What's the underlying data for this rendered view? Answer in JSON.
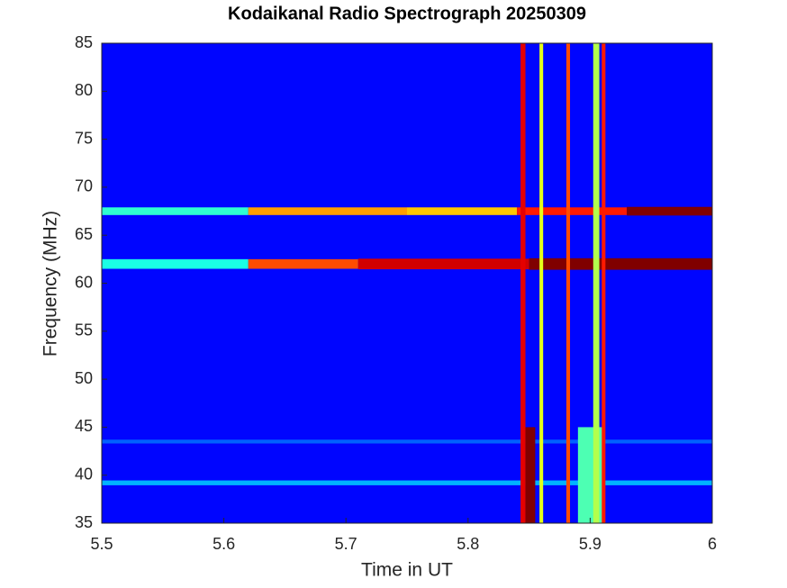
{
  "chart_data": {
    "type": "spectrogram",
    "title": "Kodaikanal Radio Spectrograph  20250309",
    "x_label": "Time in UT",
    "y_label": "Frequency (MHz)",
    "xlim": [
      5.5,
      6
    ],
    "ylim": [
      35,
      85
    ],
    "xticks": [
      5.5,
      5.6,
      5.7,
      5.8,
      5.9,
      6
    ],
    "yticks": [
      35,
      40,
      45,
      50,
      55,
      60,
      65,
      70,
      75,
      80,
      85
    ],
    "colormap": "jet",
    "background_intensity": 0.13,
    "horizontal_features": [
      {
        "freq": 67.5,
        "width": 0.8,
        "t0": 5.5,
        "t1": 5.62,
        "intensity": 0.42
      },
      {
        "freq": 67.5,
        "width": 0.8,
        "t0": 5.62,
        "t1": 5.75,
        "intensity": 0.72
      },
      {
        "freq": 67.5,
        "width": 0.8,
        "t0": 5.75,
        "t1": 5.84,
        "intensity": 0.68
      },
      {
        "freq": 67.5,
        "width": 0.8,
        "t0": 5.84,
        "t1": 5.93,
        "intensity": 0.85
      },
      {
        "freq": 67.5,
        "width": 0.9,
        "t0": 5.93,
        "t1": 6,
        "intensity": 1.0
      },
      {
        "freq": 62,
        "width": 1.0,
        "t0": 5.5,
        "t1": 5.62,
        "intensity": 0.4
      },
      {
        "freq": 62,
        "width": 1.0,
        "t0": 5.62,
        "t1": 5.71,
        "intensity": 0.8
      },
      {
        "freq": 62,
        "width": 1.1,
        "t0": 5.71,
        "t1": 5.85,
        "intensity": 0.92
      },
      {
        "freq": 62,
        "width": 1.2,
        "t0": 5.85,
        "t1": 6,
        "intensity": 1.0
      },
      {
        "freq": 39.2,
        "width": 0.5,
        "t0": 5.5,
        "t1": 6,
        "intensity": 0.3
      },
      {
        "freq": 43.5,
        "width": 0.4,
        "t0": 5.5,
        "t1": 6,
        "intensity": 0.22
      }
    ],
    "vertical_features": [
      {
        "time": 5.845,
        "width": 0.004,
        "f0": 35,
        "f1": 85,
        "intensity": 0.9
      },
      {
        "time": 5.851,
        "width": 0.008,
        "f0": 35,
        "f1": 45,
        "intensity": 1.0
      },
      {
        "time": 5.86,
        "width": 0.003,
        "f0": 35,
        "f1": 85,
        "intensity": 0.6
      },
      {
        "time": 5.882,
        "width": 0.003,
        "f0": 35,
        "f1": 85,
        "intensity": 0.8
      },
      {
        "time": 5.9,
        "width": 0.02,
        "f0": 35,
        "f1": 45,
        "intensity": 0.45
      },
      {
        "time": 5.905,
        "width": 0.005,
        "f0": 35,
        "f1": 85,
        "intensity": 0.55
      },
      {
        "time": 5.911,
        "width": 0.003,
        "f0": 35,
        "f1": 85,
        "intensity": 0.85
      }
    ]
  }
}
